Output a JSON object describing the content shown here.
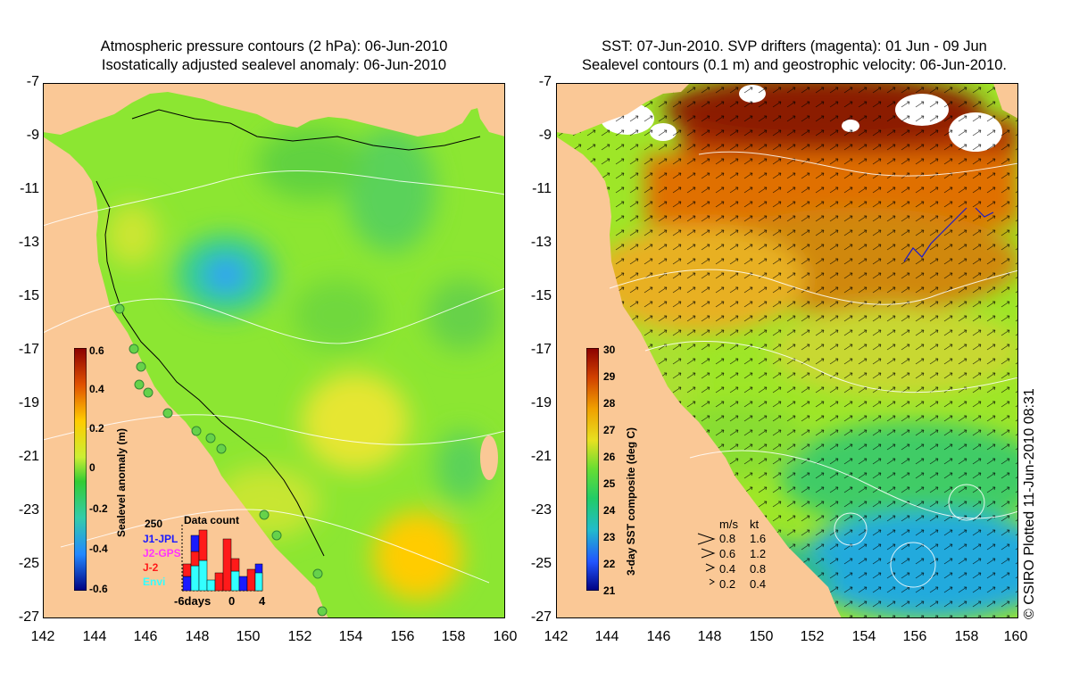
{
  "left_panel": {
    "title_line1": "Atmospheric pressure contours (2 hPa): 06-Jun-2010",
    "title_line2": "Isostatically adjusted sealevel anomaly: 06-Jun-2010",
    "colorbar": {
      "label": "Sealevel anomaly (m)",
      "ticks": [
        "0.6",
        "0.4",
        "0.2",
        "0",
        "-0.2",
        "-0.4",
        "-0.6"
      ],
      "min": -0.6,
      "max": 0.6
    },
    "data_count": {
      "title": "Data count",
      "ymax_label": "250",
      "x_labels": [
        "-6days",
        "0",
        "4"
      ],
      "series": [
        {
          "name": "J1-JPL",
          "color": "#1a1aff"
        },
        {
          "name": "J2-GPS",
          "color": "#ff33ff"
        },
        {
          "name": "J-2",
          "color": "#ff1a1a"
        },
        {
          "name": "Envi",
          "color": "#33ffff"
        }
      ]
    }
  },
  "right_panel": {
    "title_line1": "SST: 07-Jun-2010. SVP drifters (magenta): 01 Jun - 09 Jun",
    "title_line2": "Sealevel contours (0.1 m) and geostrophic velocity: 06-Jun-2010.",
    "colorbar": {
      "label": "3-day SST composite (deg C)",
      "ticks": [
        "30",
        "29",
        "28",
        "27",
        "26",
        "25",
        "24",
        "23",
        "22",
        "21"
      ],
      "min": 21,
      "max": 30
    },
    "velocity_legend": {
      "header_ms": "m/s",
      "header_kt": "kt",
      "rows": [
        {
          "ms": "0.8",
          "kt": "1.6"
        },
        {
          "ms": "0.6",
          "kt": "1.2"
        },
        {
          "ms": "0.4",
          "kt": "0.8"
        },
        {
          "ms": "0.2",
          "kt": "0.4"
        }
      ]
    },
    "credit": "© CSIRO Plotted 11-Jun-2010 08:31"
  },
  "axes": {
    "lat_ticks": [
      "-7",
      "-9",
      "-11",
      "-13",
      "-15",
      "-17",
      "-19",
      "-21",
      "-23",
      "-25",
      "-27"
    ],
    "lon_ticks": [
      "142",
      "144",
      "146",
      "148",
      "150",
      "152",
      "154",
      "156",
      "158",
      "160"
    ],
    "lat_range": [
      -27,
      -7
    ],
    "lon_range": [
      142,
      160
    ]
  },
  "colors": {
    "land": "#fac896",
    "sla_base": "#8ce632",
    "sst_base": "#9ee628"
  }
}
